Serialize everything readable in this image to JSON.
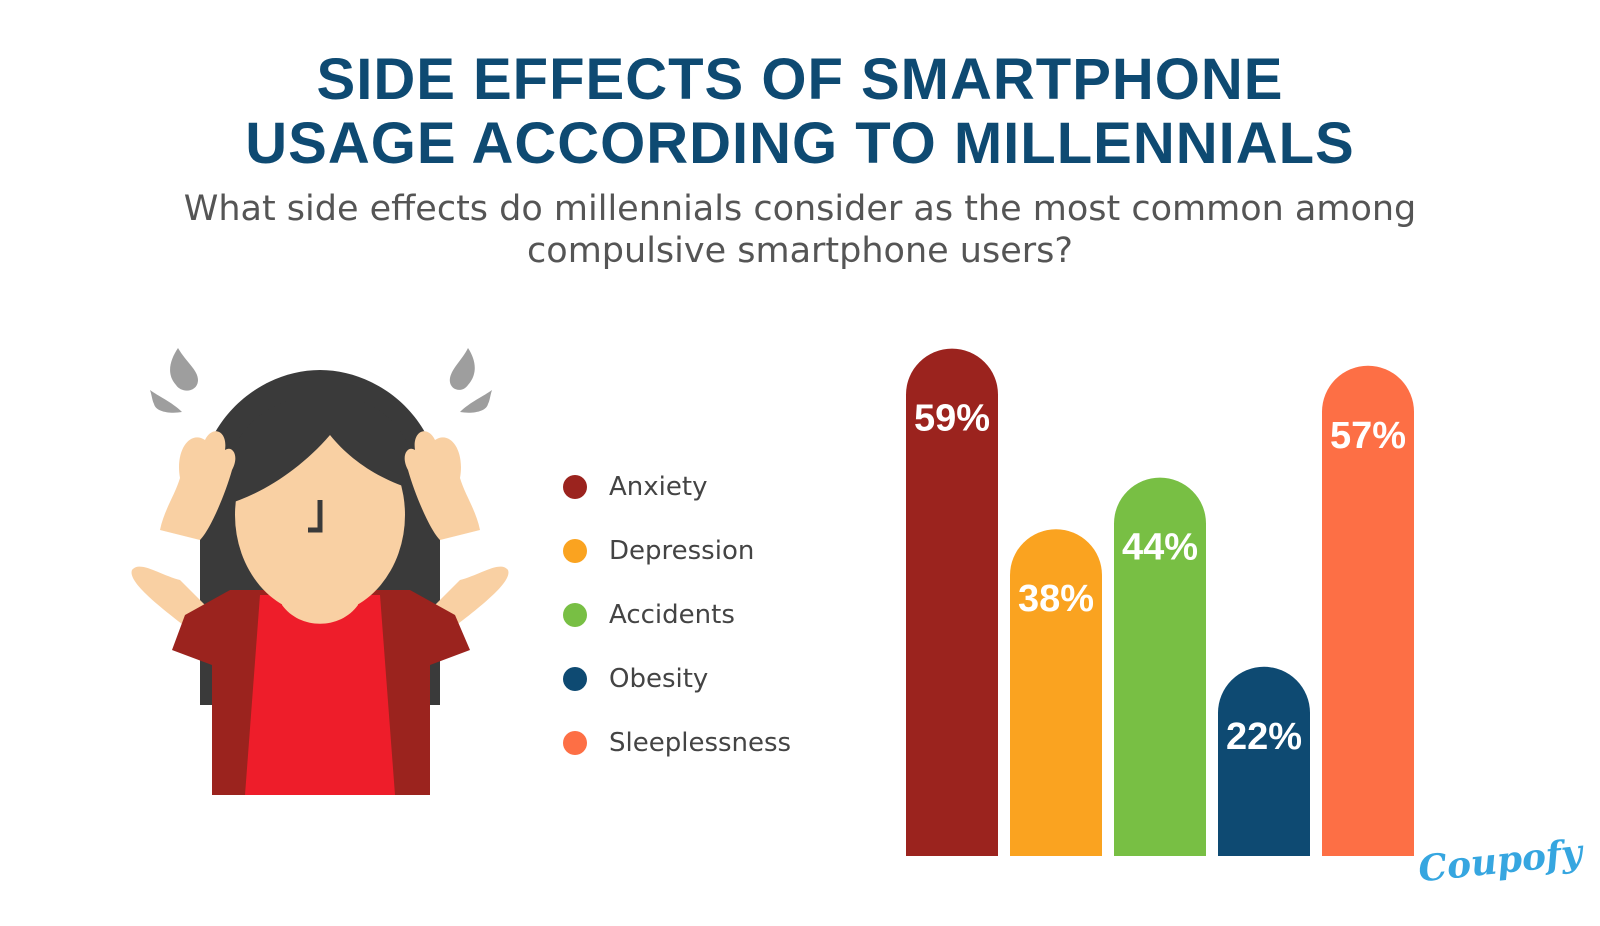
{
  "title": {
    "line1": "SIDE EFFECTS OF SMARTPHONE",
    "line2": "USAGE ACCORDING TO MILLENNIALS"
  },
  "subtitle": {
    "line1": "What side effects do millennials consider as the most common among",
    "line2": "compulsive smartphone users?"
  },
  "illustration": {
    "icon": "stressed-woman-illustration"
  },
  "logo": {
    "text": "Coupofy"
  },
  "chart_data": {
    "type": "bar",
    "title": "SIDE EFFECTS OF SMARTPHONE USAGE ACCORDING TO MILLENNIALS",
    "subtitle": "What side effects do millennials consider as the most common among compulsive smartphone users?",
    "categories": [
      "Anxiety",
      "Depression",
      "Accidents",
      "Obesity",
      "Sleeplessness"
    ],
    "values": [
      59,
      38,
      44,
      22,
      57
    ],
    "labels": [
      "59%",
      "38%",
      "44%",
      "22%",
      "57%"
    ],
    "colors": [
      "#9b231e",
      "#faa320",
      "#78bf44",
      "#0e4a72",
      "#fd6f45"
    ],
    "ylim": [
      0,
      60
    ],
    "legend_position": "left"
  }
}
